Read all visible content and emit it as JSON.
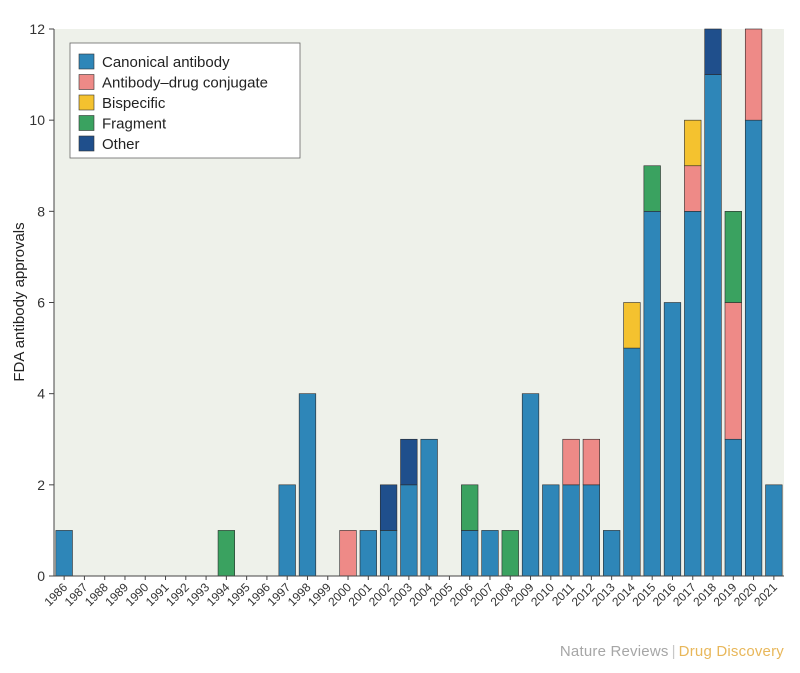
{
  "chart_data": {
    "type": "bar",
    "stacked": true,
    "ylabel": "FDA antibody approvals",
    "ylim": [
      0,
      12
    ],
    "yticks": [
      0,
      2,
      4,
      6,
      8,
      10,
      12
    ],
    "grid": false,
    "legend_position": "top-left",
    "categories": [
      "1986",
      "1987",
      "1988",
      "1989",
      "1990",
      "1991",
      "1992",
      "1993",
      "1994",
      "1995",
      "1996",
      "1997",
      "1998",
      "1999",
      "2000",
      "2001",
      "2002",
      "2003",
      "2004",
      "2005",
      "2006",
      "2007",
      "2008",
      "2009",
      "2010",
      "2011",
      "2012",
      "2013",
      "2014",
      "2015",
      "2016",
      "2017",
      "2018",
      "2019",
      "2020",
      "2021"
    ],
    "series": [
      {
        "name": "Canonical antibody",
        "color": "#2e86b8",
        "values": [
          1,
          0,
          0,
          0,
          0,
          0,
          0,
          0,
          0,
          0,
          0,
          2,
          4,
          0,
          0,
          1,
          1,
          2,
          3,
          0,
          1,
          1,
          0,
          4,
          2,
          2,
          2,
          1,
          5,
          8,
          6,
          8,
          11,
          3,
          10,
          2
        ]
      },
      {
        "name": "Antibody–drug conjugate",
        "color": "#ee8a87",
        "values": [
          0,
          0,
          0,
          0,
          0,
          0,
          0,
          0,
          0,
          0,
          0,
          0,
          0,
          0,
          1,
          0,
          0,
          0,
          0,
          0,
          0,
          0,
          0,
          0,
          0,
          1,
          1,
          0,
          0,
          0,
          0,
          1,
          0,
          3,
          2,
          0
        ]
      },
      {
        "name": "Bispecific",
        "color": "#f4c22f",
        "values": [
          0,
          0,
          0,
          0,
          0,
          0,
          0,
          0,
          0,
          0,
          0,
          0,
          0,
          0,
          0,
          0,
          0,
          0,
          0,
          0,
          0,
          0,
          0,
          0,
          0,
          0,
          0,
          0,
          1,
          0,
          0,
          1,
          0,
          0,
          0,
          0
        ]
      },
      {
        "name": "Fragment",
        "color": "#3aa260",
        "values": [
          0,
          0,
          0,
          0,
          0,
          0,
          0,
          0,
          1,
          0,
          0,
          0,
          0,
          0,
          0,
          0,
          0,
          0,
          0,
          0,
          1,
          0,
          1,
          0,
          0,
          0,
          0,
          0,
          0,
          1,
          0,
          0,
          0,
          2,
          0,
          0
        ]
      },
      {
        "name": "Other",
        "color": "#1f4f8c",
        "values": [
          0,
          0,
          0,
          0,
          0,
          0,
          0,
          0,
          0,
          0,
          0,
          0,
          0,
          0,
          0,
          0,
          1,
          1,
          0,
          0,
          0,
          0,
          0,
          0,
          0,
          0,
          0,
          0,
          0,
          0,
          0,
          0,
          1,
          0,
          0,
          0
        ]
      }
    ]
  },
  "credit": {
    "journal": "Nature Reviews",
    "separator": "|",
    "section": "Drug Discovery"
  }
}
